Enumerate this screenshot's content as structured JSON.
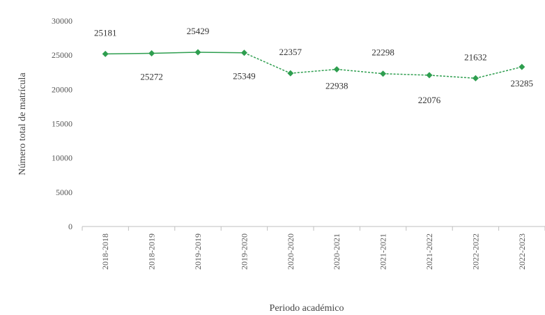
{
  "chart_data": {
    "type": "line",
    "title": "",
    "xlabel": "Periodo académico",
    "ylabel": "Número total de matrícula",
    "categories": [
      "2018-2018",
      "2018-2019",
      "2019-2019",
      "2019-2020",
      "2020-2020",
      "2020-2021",
      "2021-2021",
      "2021-2022",
      "2022-2022",
      "2022-2023"
    ],
    "yticks": [
      "0",
      "5000",
      "10000",
      "15000",
      "20000",
      "25000",
      "30000"
    ],
    "ylim": [
      0,
      30000
    ],
    "series": [
      {
        "values": [
          25181,
          25272,
          25429,
          25349,
          22357,
          22938,
          22298,
          22076,
          21632,
          23285
        ],
        "labels": [
          "25181",
          "25272",
          "25429",
          "25349",
          "22357",
          "22938",
          "22298",
          "22076",
          "21632",
          "23285"
        ],
        "color": "#2e9e4f"
      }
    ],
    "grid": false,
    "legend": false
  }
}
